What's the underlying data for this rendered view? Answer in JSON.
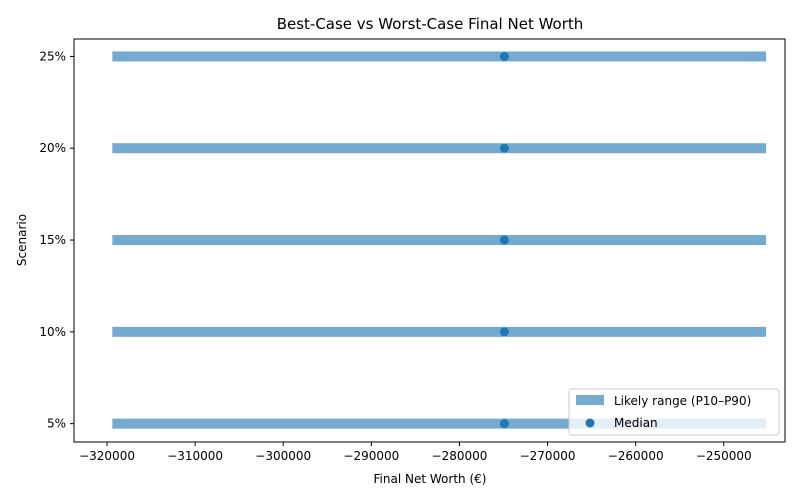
{
  "chart_data": {
    "type": "range-bar",
    "orientation": "horizontal",
    "title": "Best-Case vs Worst-Case Final Net Worth",
    "xlabel": "Final Net Worth (€)",
    "ylabel": "Scenario",
    "categories": [
      "5%",
      "10%",
      "15%",
      "20%",
      "25%"
    ],
    "xlim": [
      -323750,
      -243050
    ],
    "xticks": [
      -320000,
      -310000,
      -300000,
      -290000,
      -280000,
      -270000,
      -260000,
      -250000
    ],
    "xtick_labels": [
      "−320000",
      "−310000",
      "−300000",
      "−290000",
      "−280000",
      "−270000",
      "−260000",
      "−250000"
    ],
    "series": [
      {
        "name": "Likely range (P10–P90)",
        "kind": "range",
        "color": "#75aad0",
        "low": [
          -319400,
          -319400,
          -319400,
          -319400,
          -319400
        ],
        "high": [
          -245200,
          -245200,
          -245200,
          -245200,
          -245200
        ]
      },
      {
        "name": "Median",
        "kind": "point",
        "color": "#1f77b4",
        "values": [
          -274900,
          -274900,
          -274900,
          -274900,
          -274900
        ]
      }
    ],
    "legend": "lower-right",
    "grid": false
  }
}
